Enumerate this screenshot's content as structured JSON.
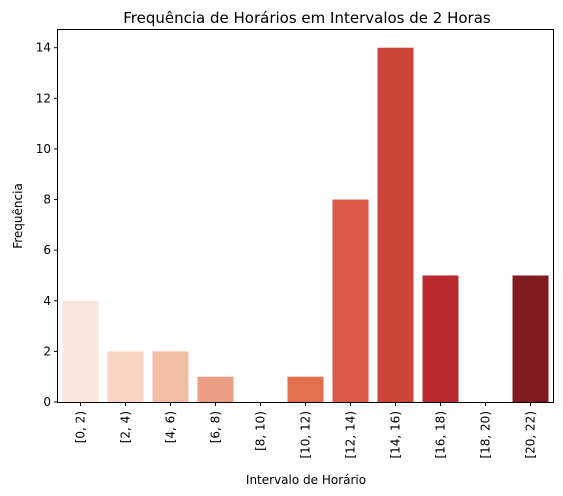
{
  "chart_data": {
    "type": "bar",
    "title": "Frequência de Horários em Intervalos de 2 Horas",
    "xlabel": "Intervalo de Horário",
    "ylabel": "Frequência",
    "categories": [
      "[0, 2)",
      "[2, 4)",
      "[4, 6)",
      "[6, 8)",
      "[8, 10)",
      "[10, 12)",
      "[12, 14)",
      "[14, 16)",
      "[16, 18)",
      "[18, 20)",
      "[20, 22)"
    ],
    "values": [
      4,
      2,
      2,
      1,
      0,
      1,
      8,
      14,
      5,
      0,
      5
    ],
    "colors": [
      "#fbe6dc",
      "#f8d4c3",
      "#f2bda5",
      "#eba086",
      "#e8826a",
      "#e2704f",
      "#db594a",
      "#cd4438",
      "#b82a2e",
      "#9f1f26",
      "#801b22"
    ],
    "yticks": [
      0,
      2,
      4,
      6,
      8,
      10,
      12,
      14
    ],
    "ylim": [
      0,
      14.7
    ],
    "grid": false
  }
}
